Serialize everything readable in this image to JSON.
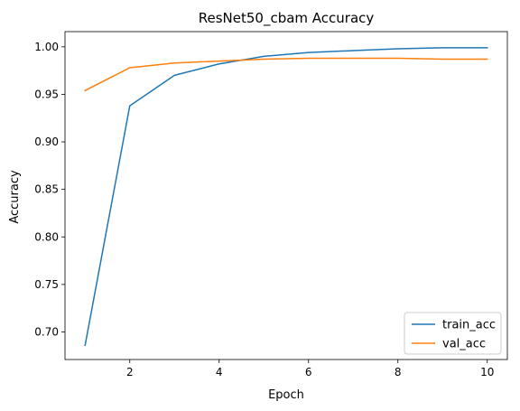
{
  "chart_data": {
    "type": "line",
    "title": "ResNet50_cbam Accuracy",
    "xlabel": "Epoch",
    "ylabel": "Accuracy",
    "xlim": [
      0.55,
      10.45
    ],
    "ylim": [
      0.671,
      1.016
    ],
    "xticks": [
      2,
      4,
      6,
      8,
      10
    ],
    "yticks": [
      0.7,
      0.75,
      0.8,
      0.85,
      0.9,
      0.95,
      1.0
    ],
    "ytick_labels": [
      "0.70",
      "0.75",
      "0.80",
      "0.85",
      "0.90",
      "0.95",
      "1.00"
    ],
    "x": [
      1,
      2,
      3,
      4,
      5,
      6,
      7,
      8,
      9,
      10
    ],
    "series": [
      {
        "name": "train_acc",
        "color": "#1f77b4",
        "values": [
          0.686,
          0.938,
          0.97,
          0.982,
          0.99,
          0.994,
          0.996,
          0.998,
          0.999,
          0.999
        ]
      },
      {
        "name": "val_acc",
        "color": "#ff7f0e",
        "values": [
          0.954,
          0.978,
          0.983,
          0.985,
          0.987,
          0.988,
          0.988,
          0.988,
          0.987,
          0.987
        ]
      }
    ],
    "grid": false,
    "legend_position": "lower-right"
  }
}
